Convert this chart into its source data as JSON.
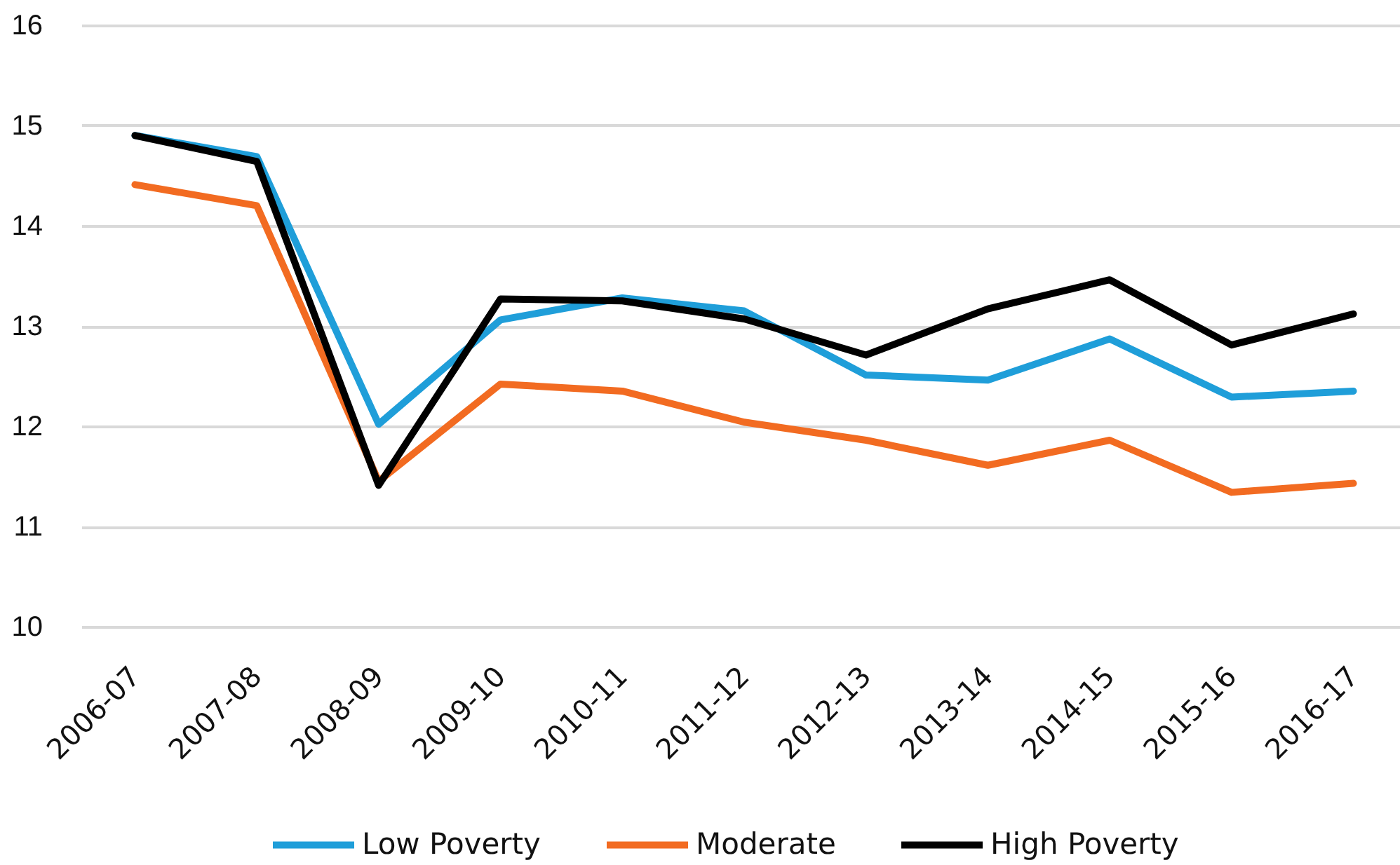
{
  "chart_data": {
    "type": "line",
    "categories": [
      "2006-07",
      "2007-08",
      "2008-09",
      "2009-10",
      "2010-11",
      "2011-12",
      "2012-13",
      "2013-14",
      "2014-15",
      "2015-16",
      "2016-17"
    ],
    "series": [
      {
        "name": "Low Poverty",
        "color": "#1f9ed9",
        "values": [
          14.9,
          14.69,
          12.02,
          13.06,
          13.28,
          13.15,
          12.51,
          12.46,
          12.87,
          12.29,
          12.35
        ]
      },
      {
        "name": "Moderate",
        "color": "#f26b21",
        "values": [
          14.41,
          14.2,
          11.45,
          12.42,
          12.35,
          12.04,
          11.86,
          11.61,
          11.86,
          11.34,
          11.43
        ]
      },
      {
        "name": "High Poverty",
        "color": "#000000",
        "values": [
          14.9,
          14.64,
          11.41,
          13.27,
          13.25,
          13.07,
          12.71,
          13.17,
          13.46,
          12.81,
          13.12
        ]
      }
    ],
    "ylim": [
      10,
      16
    ],
    "yticks": [
      10,
      11,
      12,
      13,
      14,
      15,
      16
    ],
    "grid": "y",
    "legend": "bottom"
  }
}
